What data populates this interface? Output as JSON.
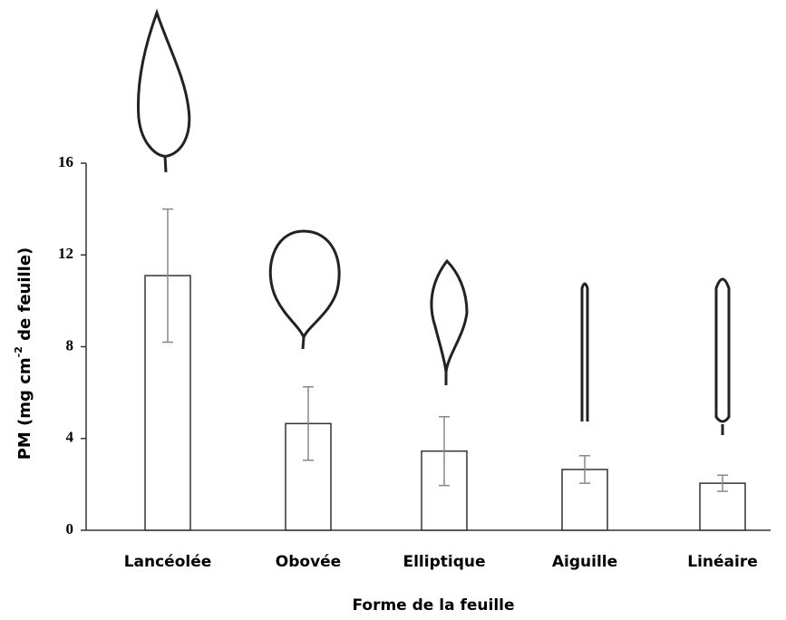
{
  "chart_data": {
    "type": "bar",
    "categories": [
      "Lancéolée",
      "Obovée",
      "Elliptique",
      "Aiguille",
      "Linéaire"
    ],
    "values": [
      11.1,
      4.65,
      3.45,
      2.65,
      2.05
    ],
    "errors": [
      2.9,
      1.6,
      1.5,
      0.6,
      0.35
    ],
    "color": "#ffffff",
    "ylim": [
      0,
      16
    ],
    "yticks": [
      0,
      4,
      8,
      12,
      16
    ],
    "x_label": "Forme de la feuille",
    "y_label_parts": [
      "PM (mg cm",
      "-2",
      " de feuille)"
    ]
  }
}
